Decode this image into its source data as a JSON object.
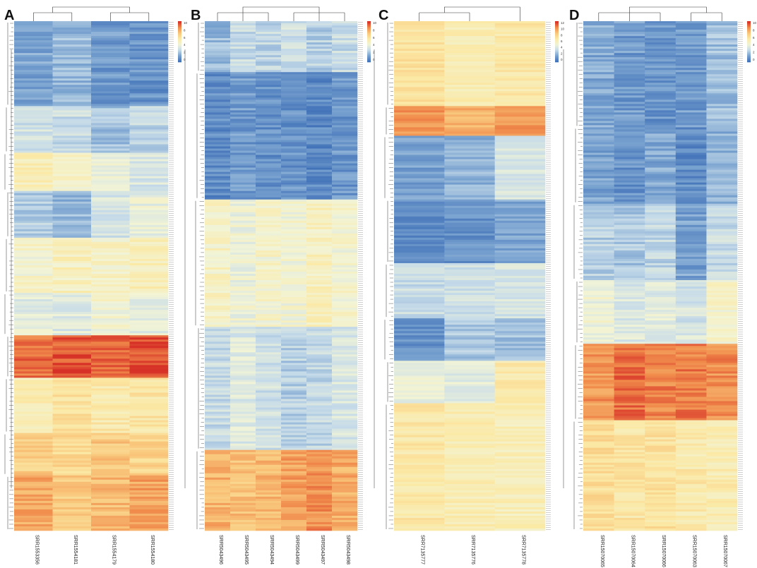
{
  "figure": {
    "description_free": true
  },
  "palette": {
    "blue_dark": "#4171b8",
    "blue_mid": "#7aa3d0",
    "blue_light": "#c6dbe9",
    "pale": "#f2f4d6",
    "yellow": "#fbe9a6",
    "orange_light": "#f9c77c",
    "orange": "#f08a4b",
    "red": "#d73027"
  },
  "chart_data": [
    {
      "type": "heatmap",
      "panel_label": "A",
      "samples": [
        "SRR1553356",
        "SRR1554181",
        "SRR1554179",
        "SRR1554180"
      ],
      "n_rows": 240,
      "legend": {
        "ticks": [
          "10",
          "8",
          "6",
          "4",
          "2",
          "0"
        ],
        "range": [
          0,
          10
        ]
      },
      "row_blocks": [
        {
          "rows": 40,
          "values": [
            1.5,
            2.0,
            1.2,
            1.0
          ]
        },
        {
          "rows": 22,
          "values": [
            3.2,
            3.0,
            2.2,
            2.8
          ]
        },
        {
          "rows": 18,
          "values": [
            5.2,
            4.6,
            4.2,
            3.4
          ]
        },
        {
          "rows": 22,
          "values": [
            2.6,
            2.0,
            3.4,
            4.0
          ]
        },
        {
          "rows": 26,
          "values": [
            4.6,
            5.0,
            4.8,
            5.2
          ]
        },
        {
          "rows": 20,
          "values": [
            3.8,
            3.6,
            4.4,
            3.9
          ]
        },
        {
          "rows": 20,
          "values": [
            9.0,
            9.4,
            9.2,
            9.6
          ]
        },
        {
          "rows": 26,
          "values": [
            5.2,
            6.0,
            5.6,
            5.8
          ]
        },
        {
          "rows": 20,
          "values": [
            6.8,
            6.4,
            7.0,
            6.6
          ]
        },
        {
          "rows": 26,
          "values": [
            7.8,
            7.0,
            7.4,
            8.0
          ]
        }
      ]
    },
    {
      "type": "heatmap",
      "panel_label": "B",
      "samples": [
        "SRR5043496",
        "SRR5043495",
        "SRR5043494",
        "SRR5043499",
        "SRR5043497",
        "SRR5043498"
      ],
      "n_rows": 240,
      "legend": {
        "ticks": [
          "10",
          "8",
          "6",
          "4",
          "2",
          "0"
        ],
        "range": [
          0,
          10
        ]
      },
      "row_blocks": [
        {
          "rows": 24,
          "values": [
            2.0,
            3.0,
            2.8,
            3.2,
            2.6,
            3.0
          ]
        },
        {
          "rows": 60,
          "values": [
            0.8,
            1.2,
            0.9,
            1.0,
            0.7,
            1.1
          ]
        },
        {
          "rows": 60,
          "values": [
            4.8,
            4.2,
            4.6,
            4.4,
            5.0,
            4.5
          ]
        },
        {
          "rows": 58,
          "values": [
            3.0,
            3.6,
            3.2,
            2.6,
            2.8,
            3.4
          ]
        },
        {
          "rows": 38,
          "values": [
            7.6,
            7.2,
            7.4,
            8.0,
            8.4,
            7.8
          ]
        }
      ]
    },
    {
      "type": "heatmap",
      "panel_label": "C",
      "samples": [
        "SRR7135777",
        "SRR7135776",
        "SRR7135778"
      ],
      "n_rows": 240,
      "legend": {
        "ticks": [
          "12",
          "10",
          "8",
          "6",
          "4",
          "2",
          "0"
        ],
        "range": [
          0,
          12
        ]
      },
      "row_blocks": [
        {
          "rows": 40,
          "values": [
            7.2,
            6.4,
            6.8
          ]
        },
        {
          "rows": 14,
          "values": [
            10.0,
            9.2,
            9.8
          ]
        },
        {
          "rows": 30,
          "values": [
            1.6,
            2.2,
            4.2
          ]
        },
        {
          "rows": 30,
          "values": [
            1.0,
            1.2,
            1.8
          ]
        },
        {
          "rows": 26,
          "values": [
            3.6,
            3.8,
            4.0
          ]
        },
        {
          "rows": 20,
          "values": [
            1.2,
            2.8,
            2.6
          ]
        },
        {
          "rows": 20,
          "values": [
            4.8,
            4.6,
            6.6
          ]
        },
        {
          "rows": 60,
          "values": [
            6.8,
            6.4,
            6.2
          ]
        }
      ]
    },
    {
      "type": "heatmap",
      "panel_label": "D",
      "samples": [
        "SRR15070065",
        "SRR15070064",
        "SRR15070066",
        "SRR15070063",
        "SRR15070067"
      ],
      "n_rows": 240,
      "legend": {
        "ticks": [
          "10",
          "8",
          "6",
          "4",
          "2",
          "0"
        ],
        "range": [
          0,
          10
        ]
      },
      "row_blocks": [
        {
          "rows": 50,
          "values": [
            1.6,
            1.2,
            1.0,
            1.2,
            2.2
          ]
        },
        {
          "rows": 36,
          "values": [
            1.4,
            1.0,
            1.6,
            0.8,
            1.8
          ]
        },
        {
          "rows": 36,
          "values": [
            2.6,
            2.4,
            2.8,
            1.4,
            3.0
          ]
        },
        {
          "rows": 30,
          "values": [
            4.2,
            3.6,
            3.8,
            3.4,
            4.6
          ]
        },
        {
          "rows": 36,
          "values": [
            8.2,
            9.0,
            8.6,
            8.8,
            8.4
          ]
        },
        {
          "rows": 52,
          "values": [
            6.2,
            5.8,
            6.0,
            5.6,
            5.4
          ]
        }
      ]
    }
  ]
}
